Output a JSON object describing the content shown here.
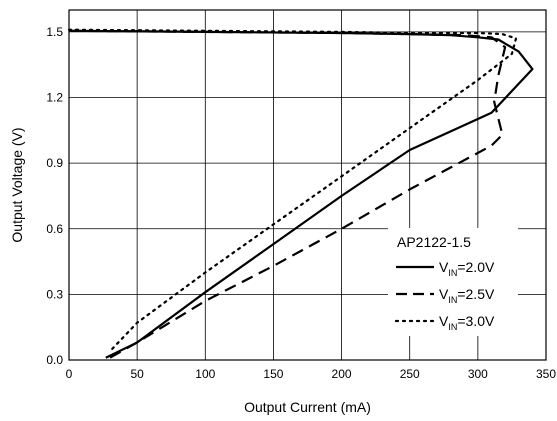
{
  "chart_data": {
    "type": "line",
    "title": "",
    "xlabel": "Output Current (mA)",
    "ylabel": "Output Voltage (V)",
    "xlim": [
      0,
      350
    ],
    "ylim": [
      0,
      1.6
    ],
    "xticks": [
      0,
      50,
      100,
      150,
      200,
      250,
      300,
      350
    ],
    "yticks": [
      0.0,
      0.3,
      0.6,
      0.9,
      1.2,
      1.5
    ],
    "ytick_labels": [
      "0.0",
      "0.3",
      "0.6",
      "0.9",
      "1.2",
      "1.5"
    ],
    "grid": true,
    "legend": {
      "title": "AP2122-1.5",
      "placement": "lower-right",
      "entries": [
        {
          "prefix": "V",
          "sub": "IN",
          "suffix": "=2.0V"
        },
        {
          "prefix": "V",
          "sub": "IN",
          "suffix": "=2.5V"
        },
        {
          "prefix": "V",
          "sub": "IN",
          "suffix": "=3.0V"
        }
      ]
    },
    "series": [
      {
        "style": "solid",
        "color": "#000000",
        "points": [
          [
            0,
            1.505
          ],
          [
            100,
            1.5
          ],
          [
            200,
            1.495
          ],
          [
            250,
            1.49
          ],
          [
            280,
            1.485
          ],
          [
            300,
            1.475
          ],
          [
            315,
            1.465
          ],
          [
            330,
            1.41
          ],
          [
            340,
            1.33
          ],
          [
            310,
            1.13
          ],
          [
            250,
            0.96
          ],
          [
            200,
            0.75
          ],
          [
            150,
            0.53
          ],
          [
            100,
            0.31
          ],
          [
            50,
            0.08
          ],
          [
            27,
            0.01
          ]
        ]
      },
      {
        "style": "dashed",
        "color": "#000000",
        "points": [
          [
            0,
            1.505
          ],
          [
            100,
            1.5
          ],
          [
            200,
            1.495
          ],
          [
            250,
            1.49
          ],
          [
            290,
            1.485
          ],
          [
            310,
            1.475
          ],
          [
            320,
            1.43
          ],
          [
            315,
            1.3
          ],
          [
            312,
            1.18
          ],
          [
            318,
            1.03
          ],
          [
            310,
            0.98
          ],
          [
            250,
            0.78
          ],
          [
            200,
            0.6
          ],
          [
            150,
            0.43
          ],
          [
            100,
            0.27
          ],
          [
            50,
            0.08
          ],
          [
            27,
            0.0
          ]
        ]
      },
      {
        "style": "dotted",
        "color": "#000000",
        "points": [
          [
            0,
            1.51
          ],
          [
            100,
            1.505
          ],
          [
            200,
            1.5
          ],
          [
            250,
            1.495
          ],
          [
            300,
            1.495
          ],
          [
            318,
            1.49
          ],
          [
            328,
            1.47
          ],
          [
            325,
            1.4
          ],
          [
            300,
            1.28
          ],
          [
            250,
            1.06
          ],
          [
            200,
            0.84
          ],
          [
            150,
            0.62
          ],
          [
            100,
            0.4
          ],
          [
            50,
            0.17
          ],
          [
            30,
            0.04
          ]
        ]
      }
    ]
  }
}
